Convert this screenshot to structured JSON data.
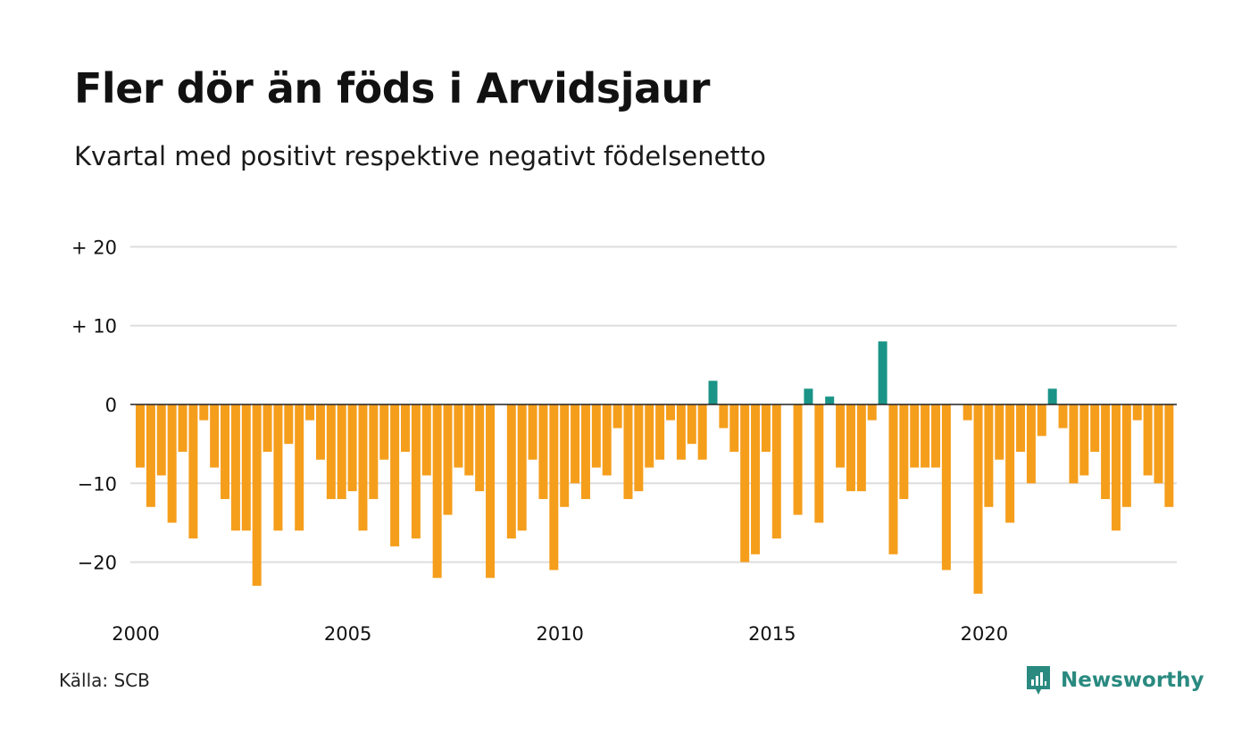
{
  "title": "Fler dör än föds i Arvidsjaur",
  "subtitle": "Kvartal med positivt respektive negativt födelsenetto",
  "source": "Källa: SCB",
  "brand": {
    "name": "Newsworthy",
    "icon": "newsworthy-logo-icon"
  },
  "colors": {
    "negative": "#f59e1c",
    "positive": "#1a9486",
    "grid": "#dddddd",
    "zero_line": "#222222"
  },
  "chart_data": {
    "type": "bar",
    "title": "Fler dör än föds i Arvidsjaur",
    "subtitle": "Kvartal med positivt respektive negativt födelsenetto",
    "xlabel": "",
    "ylabel": "",
    "ylim": [
      -25,
      22
    ],
    "grid": true,
    "yticks": [
      {
        "value": 20,
        "label": "+ 20"
      },
      {
        "value": 10,
        "label": "+ 10"
      },
      {
        "value": 0,
        "label": "0"
      },
      {
        "value": -10,
        "label": "−10"
      },
      {
        "value": -20,
        "label": "−20"
      }
    ],
    "xticks": [
      {
        "index": 0,
        "label": "2000"
      },
      {
        "index": 20,
        "label": "2005"
      },
      {
        "index": 40,
        "label": "2010"
      },
      {
        "index": 60,
        "label": "2015"
      },
      {
        "index": 80,
        "label": "2020"
      }
    ],
    "start_year": 2000,
    "start_quarter": 1,
    "values": [
      -8,
      -13,
      -9,
      -15,
      -6,
      -17,
      -2,
      -8,
      -12,
      -16,
      -16,
      -23,
      -6,
      -16,
      -5,
      -16,
      -2,
      -7,
      -12,
      -12,
      -11,
      -16,
      -12,
      -7,
      -18,
      -6,
      -17,
      -9,
      -22,
      -14,
      -8,
      -9,
      -11,
      -22,
      0,
      -17,
      -16,
      -7,
      -12,
      -21,
      -13,
      -10,
      -12,
      -8,
      -9,
      -3,
      -12,
      -11,
      -8,
      -7,
      -2,
      -7,
      -5,
      -7,
      3,
      -3,
      -6,
      -20,
      -19,
      -6,
      -17,
      0,
      -14,
      2,
      -15,
      1,
      -8,
      -11,
      -11,
      -2,
      8,
      -19,
      -12,
      -8,
      -8,
      -8,
      -21,
      0,
      -2,
      -24,
      -13,
      -7,
      -15,
      -6,
      -10,
      -4,
      2,
      -3,
      -10,
      -9,
      -6,
      -12,
      -16,
      -13,
      -2,
      -9,
      -10,
      -13
    ]
  }
}
